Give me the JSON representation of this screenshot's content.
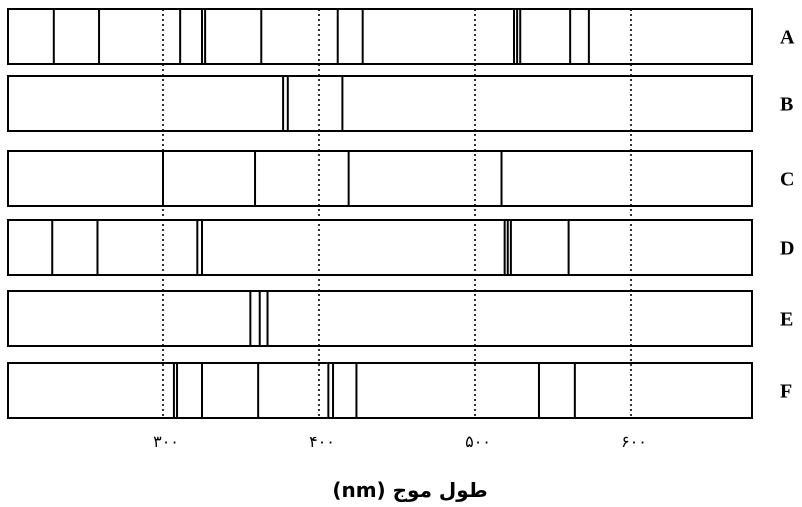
{
  "axis": {
    "label": "طول موج (nm)",
    "ticks": [
      {
        "value": 300,
        "label": "۳۰۰"
      },
      {
        "value": 400,
        "label": "۴۰۰"
      },
      {
        "value": 500,
        "label": "۵۰۰"
      },
      {
        "value": 600,
        "label": "۶۰۰"
      }
    ],
    "range": [
      203,
      577
    ]
  },
  "spectra": [
    {
      "label": "A",
      "lines": [
        230,
        259,
        311,
        325,
        327,
        363,
        412,
        428,
        525,
        527,
        529,
        561,
        573
      ]
    },
    {
      "label": "B",
      "lines": [
        377,
        380,
        415
      ]
    },
    {
      "label": "C",
      "lines": [
        300,
        359,
        419,
        517
      ]
    },
    {
      "label": "D",
      "lines": [
        229,
        258,
        322,
        325,
        519,
        521,
        523,
        560
      ]
    },
    {
      "label": "E",
      "lines": [
        356,
        362,
        367
      ]
    },
    {
      "label": "F",
      "lines": [
        307,
        309,
        325,
        361,
        406,
        409,
        424,
        541,
        564
      ]
    }
  ],
  "colors": {
    "line": "#000000",
    "grid": "#000000",
    "background": "#ffffff"
  }
}
